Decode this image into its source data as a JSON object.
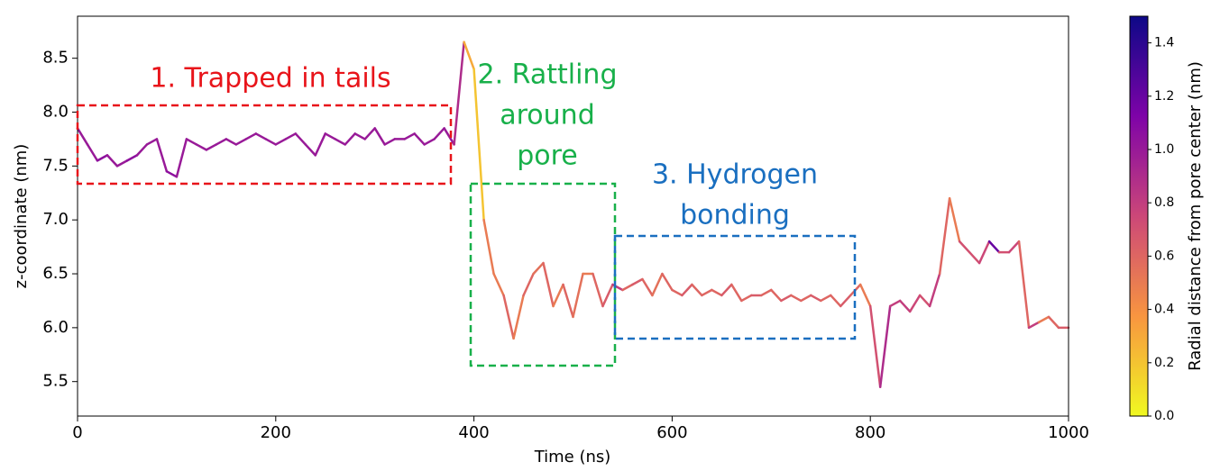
{
  "chart_data": {
    "type": "colored_line",
    "x_label": "Time (ns)",
    "y_label": "z-coordinate (nm)",
    "colorbar_label": "Radial distance from pore center (nm)",
    "x": [
      0,
      10,
      20,
      30,
      40,
      50,
      60,
      70,
      80,
      90,
      100,
      110,
      120,
      130,
      140,
      150,
      160,
      170,
      180,
      190,
      200,
      210,
      220,
      230,
      240,
      250,
      260,
      270,
      280,
      290,
      300,
      310,
      320,
      330,
      340,
      350,
      360,
      370,
      380,
      390,
      400,
      410,
      420,
      430,
      440,
      450,
      460,
      470,
      480,
      490,
      500,
      510,
      520,
      530,
      540,
      550,
      560,
      570,
      580,
      590,
      600,
      610,
      620,
      630,
      640,
      650,
      660,
      670,
      680,
      690,
      700,
      710,
      720,
      730,
      740,
      750,
      760,
      770,
      780,
      790,
      800,
      810,
      820,
      830,
      840,
      850,
      860,
      870,
      880,
      890,
      900,
      910,
      920,
      930,
      940,
      950,
      960,
      970,
      980,
      990,
      1000
    ],
    "values": [
      7.85,
      7.7,
      7.55,
      7.6,
      7.5,
      7.55,
      7.6,
      7.7,
      7.75,
      7.45,
      7.4,
      7.75,
      7.7,
      7.65,
      7.7,
      7.75,
      7.7,
      7.75,
      7.8,
      7.75,
      7.7,
      7.75,
      7.8,
      7.7,
      7.6,
      7.8,
      7.75,
      7.7,
      7.8,
      7.75,
      7.85,
      7.7,
      7.75,
      7.75,
      7.8,
      7.7,
      7.75,
      7.85,
      7.7,
      8.65,
      8.4,
      7.0,
      6.5,
      6.3,
      5.9,
      6.3,
      6.5,
      6.6,
      6.2,
      6.4,
      6.1,
      6.5,
      6.5,
      6.2,
      6.4,
      6.35,
      6.4,
      6.45,
      6.3,
      6.5,
      6.35,
      6.3,
      6.4,
      6.3,
      6.35,
      6.3,
      6.4,
      6.25,
      6.3,
      6.3,
      6.35,
      6.25,
      6.3,
      6.25,
      6.3,
      6.25,
      6.3,
      6.2,
      6.3,
      6.4,
      6.2,
      5.45,
      6.2,
      6.25,
      6.15,
      6.3,
      6.2,
      6.5,
      7.2,
      6.8,
      6.7,
      6.6,
      6.8,
      6.7,
      6.7,
      6.8,
      6.0,
      6.05,
      6.1,
      6.0,
      6.0
    ],
    "radial": [
      1.0,
      1.0,
      1.05,
      1.0,
      1.0,
      1.05,
      1.0,
      1.0,
      1.0,
      1.05,
      1.0,
      1.0,
      1.0,
      1.0,
      1.0,
      1.0,
      1.0,
      1.0,
      1.0,
      1.0,
      1.0,
      1.0,
      1.0,
      1.0,
      1.0,
      1.0,
      1.0,
      1.0,
      1.0,
      1.0,
      1.0,
      1.0,
      1.0,
      1.0,
      1.0,
      1.0,
      1.0,
      1.0,
      0.9,
      0.3,
      0.2,
      0.5,
      0.5,
      0.6,
      0.5,
      0.6,
      0.55,
      0.6,
      0.5,
      0.6,
      0.55,
      0.5,
      0.6,
      0.65,
      0.8,
      0.6,
      0.65,
      0.6,
      0.55,
      0.6,
      0.6,
      0.65,
      0.6,
      0.6,
      0.6,
      0.65,
      0.6,
      0.6,
      0.65,
      0.6,
      0.6,
      0.65,
      0.6,
      0.6,
      0.65,
      0.6,
      0.6,
      0.65,
      0.6,
      0.5,
      0.7,
      0.9,
      0.8,
      0.8,
      0.75,
      0.7,
      0.8,
      0.6,
      0.5,
      0.7,
      0.7,
      0.75,
      1.2,
      0.7,
      0.75,
      0.6,
      0.8,
      0.5,
      0.6,
      0.65,
      0.7
    ],
    "xlim": [
      0,
      1000
    ],
    "ylim": [
      5.18,
      8.89
    ],
    "clim": [
      0,
      1.5
    ],
    "xticks": [
      0,
      200,
      400,
      600,
      800,
      1000
    ],
    "yticks": [
      5.5,
      {
        "value": 6,
        "label": "6.0"
      },
      6.5,
      {
        "value": 7,
        "label": "7.0"
      },
      7.5,
      {
        "value": 8,
        "label": "8.0"
      },
      8.5
    ],
    "cticks": [
      {
        "value": 0,
        "label": "0.0"
      },
      0.2,
      0.4,
      0.6,
      0.8,
      {
        "value": 1,
        "label": "1.0"
      },
      1.2,
      1.4
    ],
    "annotations": [
      {
        "lines": [
          "1. Trapped in tails"
        ],
        "color": "#e8141a"
      },
      {
        "lines": [
          "2. Rattling",
          "around",
          "pore"
        ],
        "color": "#18b04a"
      },
      {
        "lines": [
          "3. Hydrogen",
          "bonding"
        ],
        "color": "#1a6fc0"
      }
    ]
  }
}
